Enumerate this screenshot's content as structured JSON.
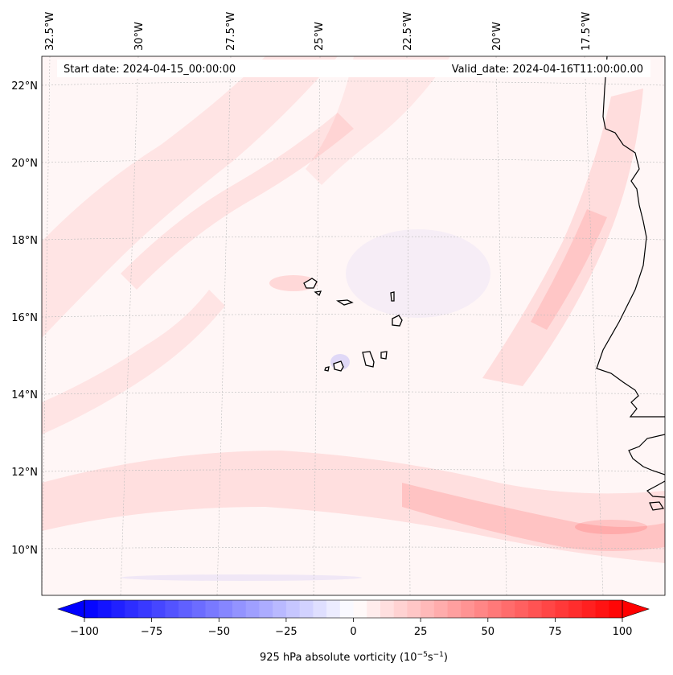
{
  "map": {
    "header": {
      "start_date": "Start date: 2024-04-15_00:00:00",
      "valid_date": "Valid_date: 2024-04-16T11:00:00.00"
    },
    "lon_labels": [
      "32.5°W",
      "30°W",
      "27.5°W",
      "25°W",
      "22.5°W",
      "20°W",
      "17.5°W"
    ],
    "lat_labels": [
      "22°N",
      "20°N",
      "18°N",
      "16°N",
      "14°N",
      "12°N",
      "10°N"
    ],
    "colorbar": {
      "ticks": [
        "−100",
        "−75",
        "−50",
        "−25",
        "0",
        "25",
        "50",
        "75",
        "100"
      ],
      "label": "925 hPa absolute vorticity (10",
      "label_exp1": "−5",
      "label_mid": "s",
      "label_exp2": "−1",
      "label_end": ")",
      "min": -100,
      "max": 100,
      "steps": 40
    },
    "colors": {
      "neg": "#0000ff",
      "pos": "#ff0000",
      "grid": "#bbbbbb",
      "coast": "#000000"
    }
  }
}
